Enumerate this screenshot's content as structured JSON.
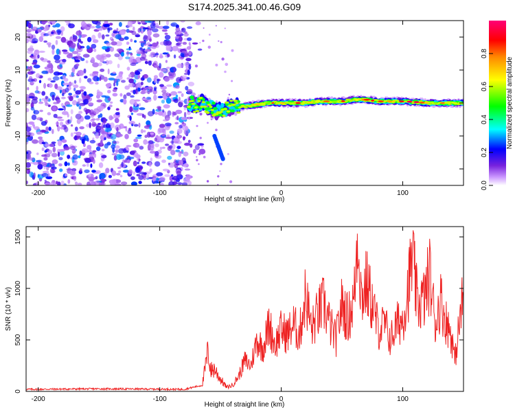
{
  "title": "S174.2025.341.00.46.G09",
  "chart_data": [
    {
      "type": "heatmap",
      "xlabel": "Height of straight line (km)",
      "ylabel": "Frequency (Hz)",
      "xlim": [
        -210,
        150
      ],
      "ylim": [
        -25,
        25
      ],
      "xticks": [
        -200,
        -100,
        0,
        100
      ],
      "yticks": [
        -20,
        -10,
        0,
        10,
        20
      ],
      "colorbar": {
        "label": "Normalized spectral amplitude",
        "range": [
          0,
          1
        ],
        "ticks": [
          0.0,
          0.2,
          0.4,
          0.6,
          0.8
        ],
        "colors": [
          "#ffffff",
          "#cc99ff",
          "#7722dd",
          "#0000ff",
          "#00ffff",
          "#00ff00",
          "#ffff00",
          "#ff8800",
          "#ff0000",
          "#ff0077"
        ]
      },
      "noise_region_x": [
        -210,
        -75
      ],
      "noise_amplitude": [
        0.05,
        0.3
      ],
      "signal_band": {
        "points": [
          [
            -75,
            0
          ],
          [
            -70,
            -1
          ],
          [
            -65,
            0.5
          ],
          [
            -60,
            -1.5
          ],
          [
            -55,
            -2
          ],
          [
            -50,
            -2.5
          ],
          [
            -45,
            -1.5
          ],
          [
            -40,
            -1
          ],
          [
            -30,
            -1
          ],
          [
            -20,
            -0.5
          ],
          [
            -10,
            0
          ],
          [
            0,
            0
          ],
          [
            10,
            0
          ],
          [
            20,
            0
          ],
          [
            30,
            0.5
          ],
          [
            40,
            0.5
          ],
          [
            50,
            0.5
          ],
          [
            60,
            1
          ],
          [
            70,
            1
          ],
          [
            80,
            0.5
          ],
          [
            90,
            0.5
          ],
          [
            100,
            0.5
          ],
          [
            110,
            0.3
          ],
          [
            120,
            0
          ],
          [
            130,
            0
          ],
          [
            140,
            0
          ],
          [
            150,
            0
          ]
        ],
        "peak_amplitude": 0.95
      },
      "secondary_branch": {
        "points": [
          [
            -55,
            -10
          ],
          [
            -52,
            -13
          ],
          [
            -50,
            -15
          ],
          [
            -48,
            -17
          ]
        ],
        "amplitude": 0.25
      }
    },
    {
      "type": "line",
      "xlabel": "Height of straight line (km)",
      "ylabel": "SNR (10 * v/v)",
      "xlim": [
        -210,
        150
      ],
      "ylim": [
        0,
        1600
      ],
      "xticks": [
        -200,
        -100,
        0,
        100
      ],
      "yticks": [
        0,
        500,
        1000,
        1500
      ],
      "color": "#ee2222",
      "series": [
        {
          "name": "SNR",
          "anchors": [
            [
              -210,
              20
            ],
            [
              -150,
              25
            ],
            [
              -100,
              22
            ],
            [
              -80,
              20
            ],
            [
              -65,
              60
            ],
            [
              -60,
              400
            ],
            [
              -58,
              200
            ],
            [
              -55,
              220
            ],
            [
              -50,
              120
            ],
            [
              -45,
              40
            ],
            [
              -40,
              60
            ],
            [
              -35,
              150
            ],
            [
              -30,
              300
            ],
            [
              -25,
              250
            ],
            [
              -20,
              500
            ],
            [
              -15,
              420
            ],
            [
              -10,
              650
            ],
            [
              -5,
              450
            ],
            [
              0,
              600
            ],
            [
              5,
              550
            ],
            [
              10,
              650
            ],
            [
              15,
              550
            ],
            [
              20,
              950
            ],
            [
              25,
              600
            ],
            [
              30,
              750
            ],
            [
              35,
              850
            ],
            [
              40,
              650
            ],
            [
              45,
              500
            ],
            [
              50,
              850
            ],
            [
              55,
              700
            ],
            [
              60,
              900
            ],
            [
              63,
              1580
            ],
            [
              66,
              900
            ],
            [
              70,
              1050
            ],
            [
              75,
              850
            ],
            [
              80,
              600
            ],
            [
              85,
              650
            ],
            [
              90,
              500
            ],
            [
              95,
              650
            ],
            [
              100,
              700
            ],
            [
              105,
              1050
            ],
            [
              108,
              1300
            ],
            [
              112,
              850
            ],
            [
              118,
              900
            ],
            [
              122,
              1150
            ],
            [
              127,
              650
            ],
            [
              131,
              900
            ],
            [
              135,
              700
            ],
            [
              140,
              550
            ],
            [
              143,
              300
            ],
            [
              146,
              600
            ],
            [
              150,
              950
            ]
          ]
        }
      ]
    }
  ]
}
